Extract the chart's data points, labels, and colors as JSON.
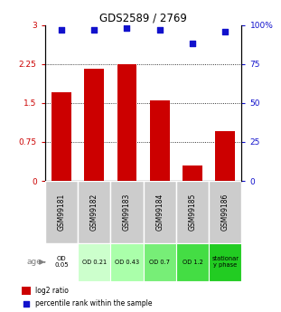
{
  "title": "GDS2589 / 2769",
  "categories": [
    "GSM99181",
    "GSM99182",
    "GSM99183",
    "GSM99184",
    "GSM99185",
    "GSM99186"
  ],
  "log2_ratio": [
    1.7,
    2.15,
    2.25,
    1.55,
    0.3,
    0.95
  ],
  "percentile_rank": [
    97,
    97,
    98,
    97,
    88,
    96
  ],
  "bar_color": "#cc0000",
  "dot_color": "#1111cc",
  "ylim_left": [
    0,
    3
  ],
  "ylim_right": [
    0,
    100
  ],
  "yticks_left": [
    0,
    0.75,
    1.5,
    2.25,
    3
  ],
  "yticks_right": [
    0,
    25,
    50,
    75,
    100
  ],
  "ytick_labels_left": [
    "0",
    "0.75",
    "1.5",
    "2.25",
    "3"
  ],
  "ytick_labels_right": [
    "0",
    "25",
    "50",
    "75",
    "100%"
  ],
  "age_labels": [
    "OD\n0.05",
    "OD 0.21",
    "OD 0.43",
    "OD 0.7",
    "OD 1.2",
    "stationar\ny phase"
  ],
  "age_bg_colors": [
    "#ffffff",
    "#ccffcc",
    "#aaffaa",
    "#77ee77",
    "#44dd44",
    "#22cc22"
  ],
  "sample_bg_color": "#cccccc",
  "legend_log2": "log2 ratio",
  "legend_pct": "percentile rank within the sample"
}
